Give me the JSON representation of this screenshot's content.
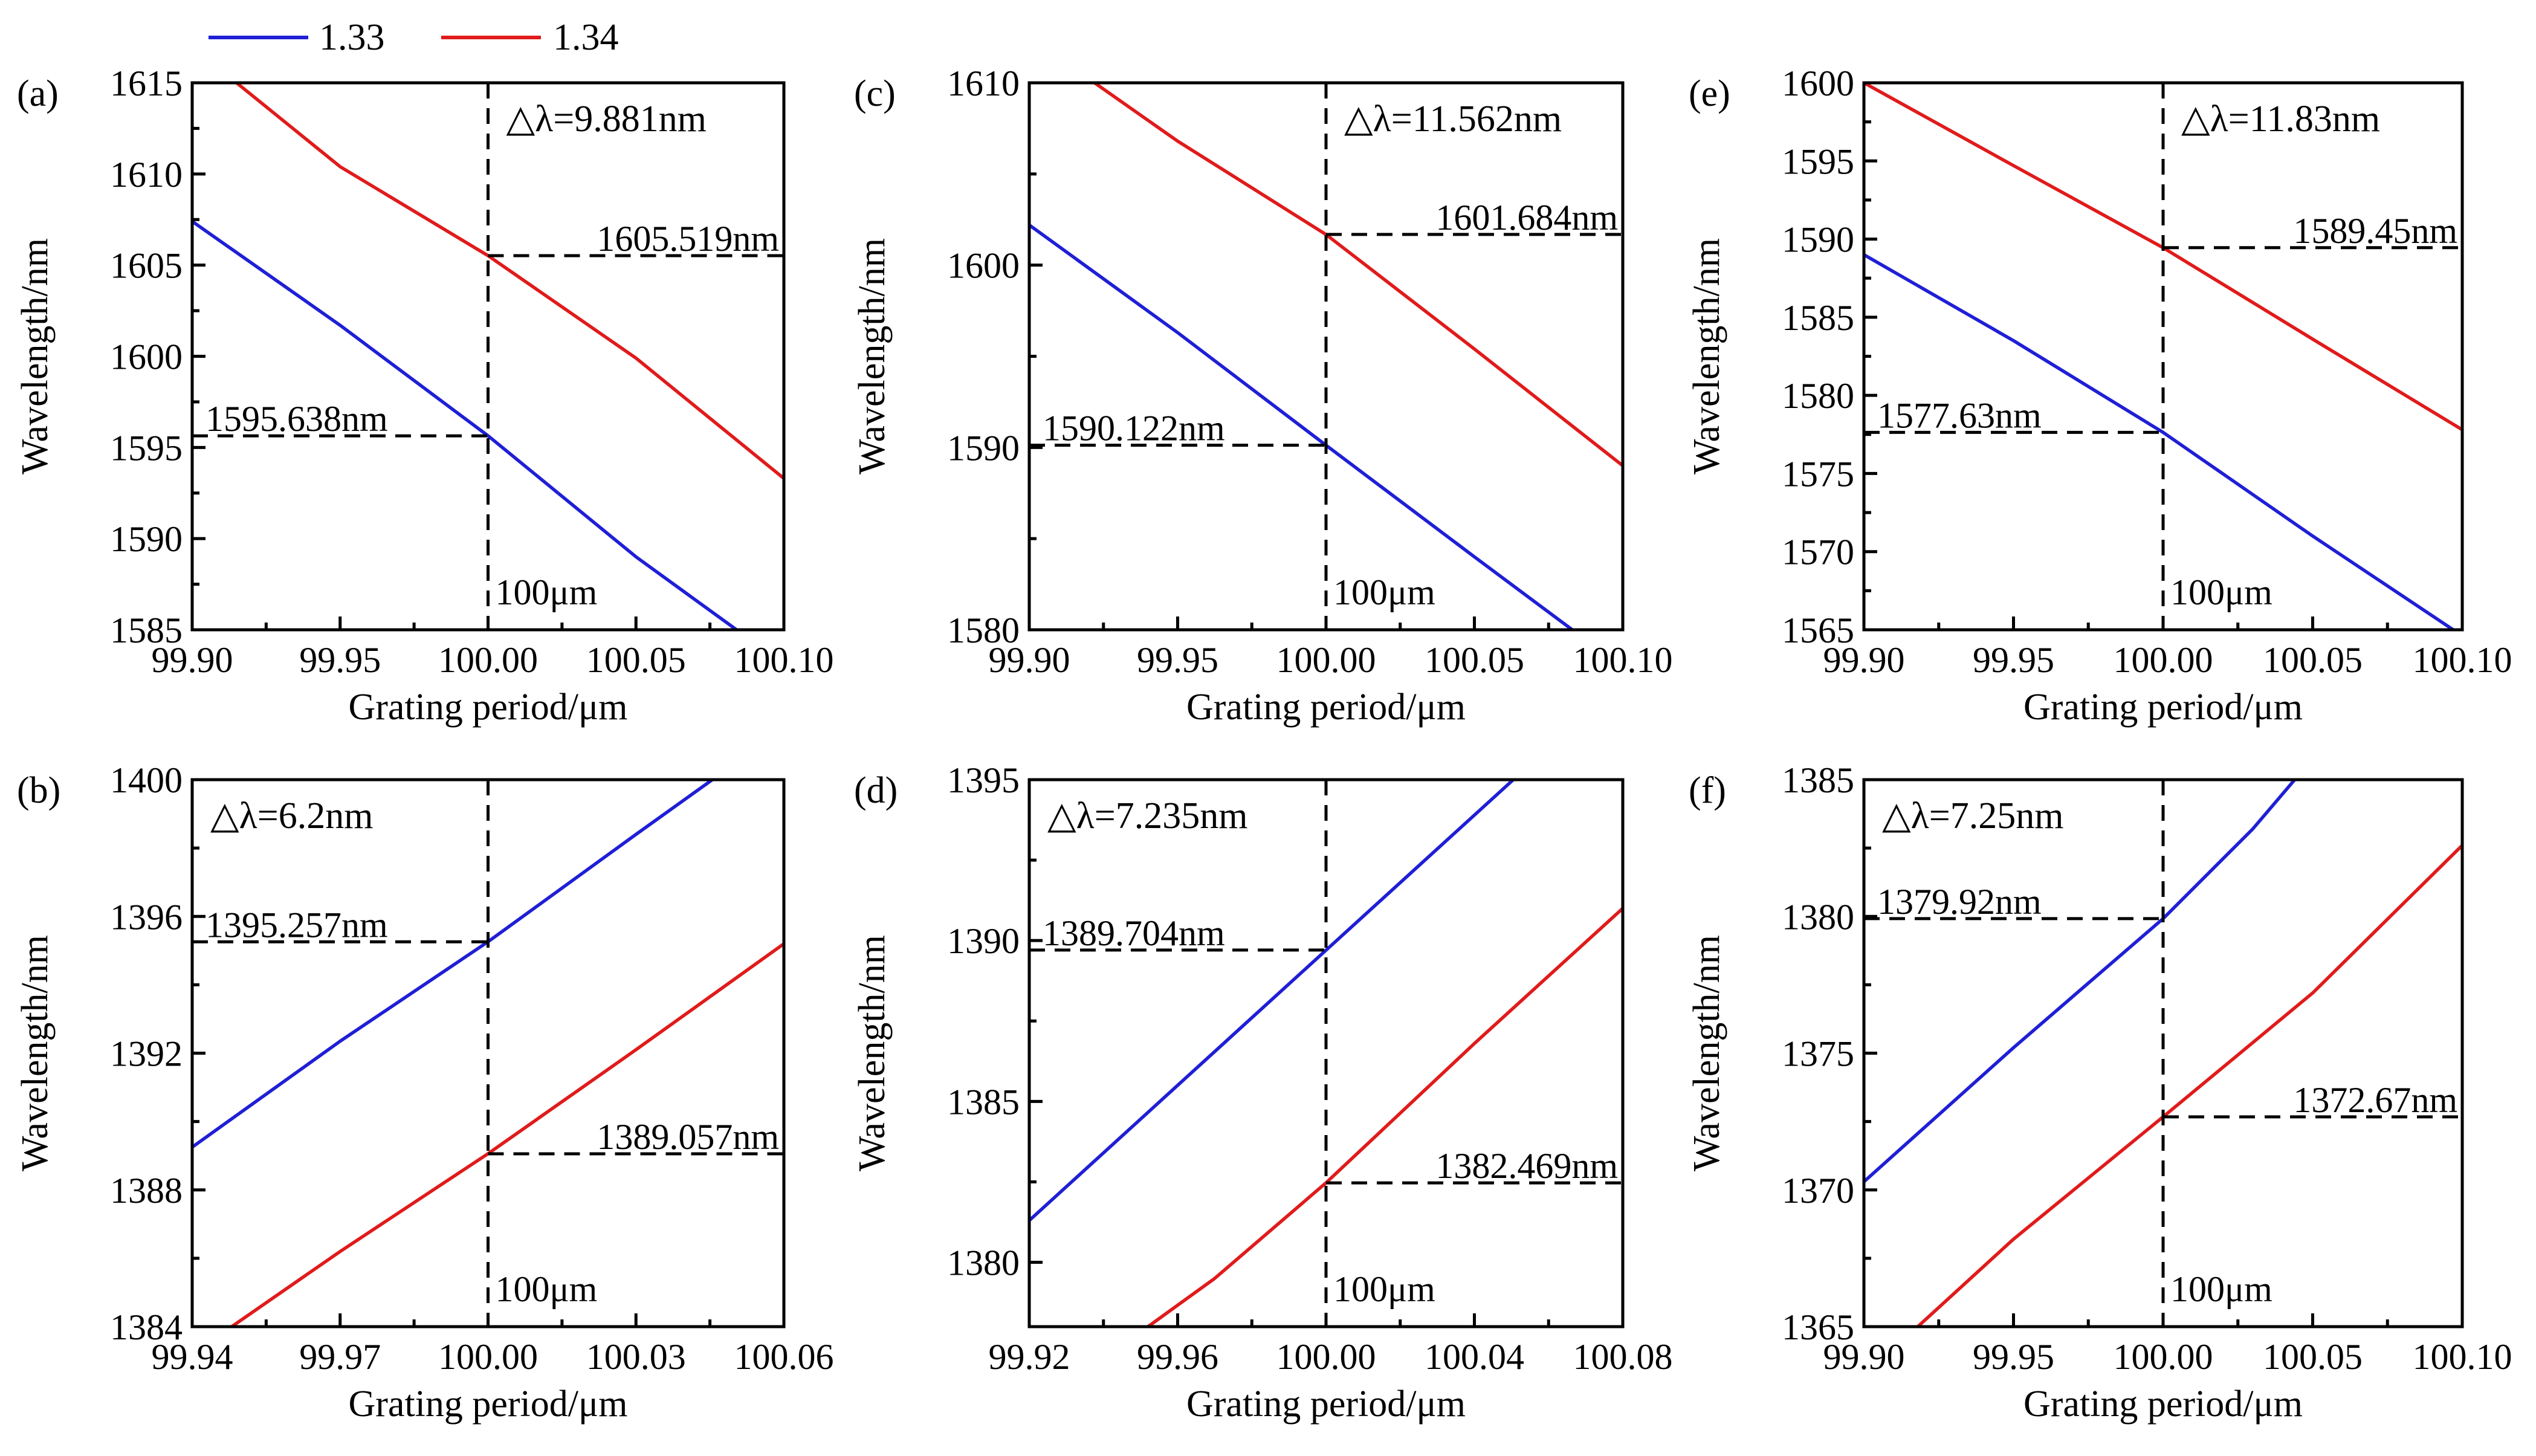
{
  "legend": [
    {
      "label": "1.33",
      "color": "#1f1fd6"
    },
    {
      "label": "1.34",
      "color": "#e01b1b"
    }
  ],
  "colors": {
    "series_1_33": "#1f1fd6",
    "series_1_34": "#e01b1b",
    "delta_text": "#e01b1b",
    "axes": "#000000"
  },
  "chart_data": [
    {
      "panel": "(a)",
      "type": "line",
      "xlabel": "Grating period/μm",
      "ylabel": "Wavelength/nm",
      "xlim": [
        99.9,
        100.1
      ],
      "ylim": [
        1585,
        1615
      ],
      "xticks": [
        99.9,
        99.95,
        100.0,
        100.05,
        100.1
      ],
      "xtick_labels": [
        "99.90",
        "99.95",
        "100.00",
        "100.05",
        "100.10"
      ],
      "yticks": [
        1585,
        1590,
        1595,
        1600,
        1605,
        1610,
        1615
      ],
      "ytick_labels": [
        "1585",
        "1590",
        "1595",
        "1600",
        "1605",
        "1610",
        "1615"
      ],
      "series": [
        {
          "name": "1.33",
          "x": [
            99.9,
            99.95,
            100.0,
            100.05,
            100.084
          ],
          "y": [
            1607.4,
            1601.7,
            1595.64,
            1589.0,
            1585.0
          ]
        },
        {
          "name": "1.34",
          "x": [
            99.915,
            99.95,
            100.0,
            100.05,
            100.1
          ],
          "y": [
            1615.0,
            1610.4,
            1605.52,
            1599.9,
            1593.3
          ]
        }
      ],
      "delta_label": "△λ=9.881nm",
      "marker_x": 100.0,
      "marker_label": "100μm",
      "upper_value": 1605.519,
      "upper_label": "1605.519nm",
      "lower_value": 1595.638,
      "lower_label": "1595.638nm"
    },
    {
      "panel": "(b)",
      "type": "line",
      "xlabel": "Grating period/μm",
      "ylabel": "Wavelength/nm",
      "xlim": [
        99.94,
        100.06
      ],
      "ylim": [
        1384,
        1400
      ],
      "xticks": [
        99.94,
        99.97,
        100.0,
        100.03,
        100.06
      ],
      "xtick_labels": [
        "99.94",
        "99.97",
        "100.00",
        "100.03",
        "100.06"
      ],
      "yticks": [
        1384,
        1388,
        1392,
        1396,
        1400
      ],
      "ytick_labels": [
        "1384",
        "1388",
        "1392",
        "1396",
        "1400"
      ],
      "series": [
        {
          "name": "1.33",
          "x": [
            99.94,
            99.97,
            100.0,
            100.03,
            100.0455
          ],
          "y": [
            1389.25,
            1392.35,
            1395.26,
            1398.4,
            1400.0
          ]
        },
        {
          "name": "1.34",
          "x": [
            99.948,
            99.97,
            100.0,
            100.03,
            100.06
          ],
          "y": [
            1384.0,
            1386.2,
            1389.06,
            1392.1,
            1395.2
          ]
        }
      ],
      "delta_label": "△λ=6.2nm",
      "marker_x": 100.0,
      "marker_label": "100μm",
      "upper_value": 1395.257,
      "upper_label": "1395.257nm",
      "lower_value": 1389.057,
      "lower_label": "1389.057nm"
    },
    {
      "panel": "(c)",
      "type": "line",
      "xlabel": "Grating period/μm",
      "ylabel": "Wavelength/nm",
      "xlim": [
        99.9,
        100.1
      ],
      "ylim": [
        1580,
        1610
      ],
      "xticks": [
        99.9,
        99.95,
        100.0,
        100.05,
        100.1
      ],
      "xtick_labels": [
        "99.90",
        "99.95",
        "100.00",
        "100.05",
        "100.10"
      ],
      "yticks": [
        1580,
        1590,
        1600,
        1610
      ],
      "ytick_labels": [
        "1580",
        "1590",
        "1600",
        "1610"
      ],
      "series": [
        {
          "name": "1.33",
          "x": [
            99.9,
            99.95,
            100.0,
            100.05,
            100.083
          ],
          "y": [
            1602.2,
            1596.3,
            1590.12,
            1584.0,
            1580.0
          ]
        },
        {
          "name": "1.34",
          "x": [
            99.922,
            99.95,
            100.0,
            100.05,
            100.1
          ],
          "y": [
            1610.0,
            1606.8,
            1601.68,
            1595.4,
            1589.0
          ]
        }
      ],
      "delta_label": "△λ=11.562nm",
      "marker_x": 100.0,
      "marker_label": "100μm",
      "upper_value": 1601.684,
      "upper_label": "1601.684nm",
      "lower_value": 1590.122,
      "lower_label": "1590.122nm"
    },
    {
      "panel": "(d)",
      "type": "line",
      "xlabel": "Grating period/μm",
      "ylabel": "Wavelength/nm",
      "xlim": [
        99.92,
        100.08
      ],
      "ylim": [
        1378,
        1395
      ],
      "xticks": [
        99.92,
        99.96,
        100.0,
        100.04,
        100.08
      ],
      "xtick_labels": [
        "99.92",
        "99.96",
        "100.00",
        "100.04",
        "100.08"
      ],
      "yticks": [
        1380,
        1385,
        1390,
        1395
      ],
      "ytick_labels": [
        "1380",
        "1385",
        "1390",
        "1395"
      ],
      "series": [
        {
          "name": "1.33",
          "x": [
            99.92,
            99.96,
            100.0,
            100.04,
            100.0505
          ],
          "y": [
            1381.3,
            1385.5,
            1389.7,
            1393.9,
            1395.0
          ]
        },
        {
          "name": "1.34",
          "x": [
            99.952,
            99.97,
            100.0,
            100.04,
            100.08
          ],
          "y": [
            1378.0,
            1379.5,
            1382.47,
            1386.8,
            1391.0
          ]
        }
      ],
      "delta_label": "△λ=7.235nm",
      "marker_x": 100.0,
      "marker_label": "100μm",
      "upper_value": 1389.704,
      "upper_label": "1389.704nm",
      "lower_value": 1382.469,
      "lower_label": "1382.469nm"
    },
    {
      "panel": "(e)",
      "type": "line",
      "xlabel": "Grating period/μm",
      "ylabel": "Wavelength/nm",
      "xlim": [
        99.9,
        100.1
      ],
      "ylim": [
        1565,
        1600
      ],
      "xticks": [
        99.9,
        99.95,
        100.0,
        100.05,
        100.1
      ],
      "xtick_labels": [
        "99.90",
        "99.95",
        "100.00",
        "100.05",
        "100.10"
      ],
      "yticks": [
        1565,
        1570,
        1575,
        1580,
        1585,
        1590,
        1595,
        1600
      ],
      "ytick_labels": [
        "1565",
        "1570",
        "1575",
        "1580",
        "1585",
        "1590",
        "1595",
        "1600"
      ],
      "series": [
        {
          "name": "1.33",
          "x": [
            99.9,
            99.95,
            100.0,
            100.05,
            100.097
          ],
          "y": [
            1589.0,
            1583.5,
            1577.63,
            1571.0,
            1565.0
          ]
        },
        {
          "name": "1.34",
          "x": [
            99.9,
            99.95,
            100.0,
            100.05,
            100.1
          ],
          "y": [
            1600.0,
            1594.7,
            1589.45,
            1583.6,
            1577.8
          ]
        }
      ],
      "delta_label": "△λ=11.83nm",
      "marker_x": 100.0,
      "marker_label": "100μm",
      "upper_value": 1589.45,
      "upper_label": "1589.45nm",
      "lower_value": 1577.63,
      "lower_label": "1577.63nm"
    },
    {
      "panel": "(f)",
      "type": "line",
      "xlabel": "Grating period/μm",
      "ylabel": "Wavelength/nm",
      "xlim": [
        99.9,
        100.1
      ],
      "ylim": [
        1365,
        1385
      ],
      "xticks": [
        99.9,
        99.95,
        100.0,
        100.05,
        100.1
      ],
      "xtick_labels": [
        "99.90",
        "99.95",
        "100.00",
        "100.05",
        "100.10"
      ],
      "yticks": [
        1365,
        1370,
        1375,
        1380,
        1385
      ],
      "ytick_labels": [
        "1365",
        "1370",
        "1375",
        "1380",
        "1385"
      ],
      "series": [
        {
          "name": "1.33",
          "x": [
            99.9,
            99.95,
            100.0,
            100.03,
            100.044
          ],
          "y": [
            1370.3,
            1375.2,
            1379.92,
            1383.2,
            1385.0
          ]
        },
        {
          "name": "1.34",
          "x": [
            99.918,
            99.95,
            100.0,
            100.05,
            100.1
          ],
          "y": [
            1365.0,
            1368.2,
            1372.67,
            1377.2,
            1382.6
          ]
        }
      ],
      "delta_label": "△λ=7.25nm",
      "marker_x": 100.0,
      "marker_label": "100μm",
      "upper_value": 1379.92,
      "upper_label": "1379.92nm",
      "lower_value": 1372.67,
      "lower_label": "1372.67nm"
    }
  ]
}
